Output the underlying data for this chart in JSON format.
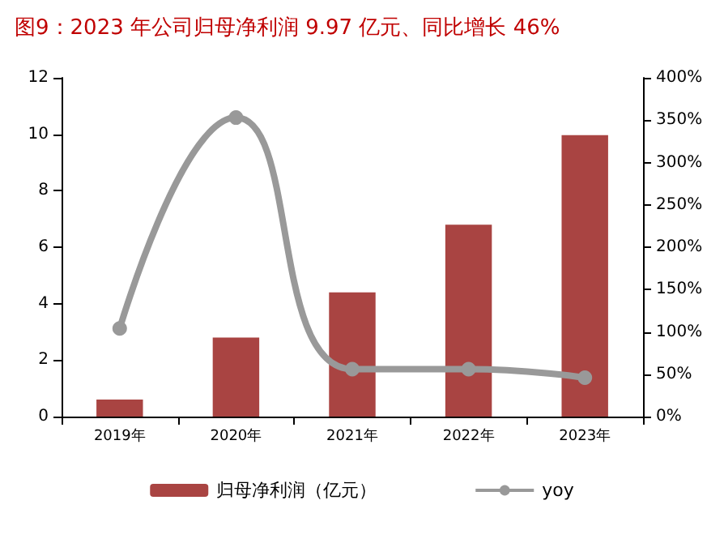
{
  "chart_data": {
    "type": "bar",
    "title": "图9：2023 年公司归母净利润 9.97 亿元、同比增长 46%",
    "categories": [
      "2019年",
      "2020年",
      "2021年",
      "2022年",
      "2023年"
    ],
    "series": [
      {
        "name": "归母净利润（亿元）",
        "color": "#a94442",
        "values": [
          0.6,
          2.8,
          4.4,
          6.8,
          9.97
        ]
      },
      {
        "name": "yoy",
        "type": "line",
        "axis": "y2",
        "color": "#999999",
        "values": [
          104,
          353,
          56,
          56,
          46
        ]
      }
    ],
    "ylim": [
      0,
      12
    ],
    "yticks": [
      0,
      2,
      4,
      6,
      8,
      10,
      12
    ],
    "y2lim": [
      0,
      400
    ],
    "y2ticks": [
      {
        "value": 0,
        "label": "0%"
      },
      {
        "value": 50,
        "label": "50%"
      },
      {
        "value": 100,
        "label": "100%"
      },
      {
        "value": 150,
        "label": "150%"
      },
      {
        "value": 200,
        "label": "200%"
      },
      {
        "value": 250,
        "label": "250%"
      },
      {
        "value": 300,
        "label": "300%"
      },
      {
        "value": 350,
        "label": "350%"
      },
      {
        "value": 400,
        "label": "400%"
      }
    ],
    "legend": "bottom",
    "grid": false,
    "marker": "circle"
  }
}
